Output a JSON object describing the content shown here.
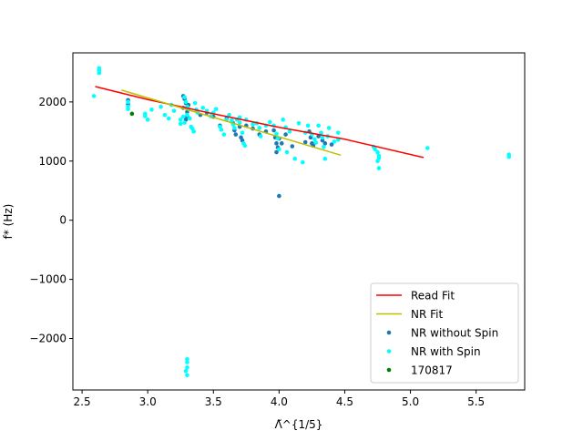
{
  "chart_data": {
    "type": "scatter",
    "xlabel": "Λ̃^{1/5}",
    "ylabel": "f* (Hz)",
    "xlim": [
      2.43,
      5.87
    ],
    "ylim": [
      -2870,
      2830
    ],
    "xticks": [
      2.5,
      3.0,
      3.5,
      4.0,
      4.5,
      5.0,
      5.5
    ],
    "xtick_labels": [
      "2.5",
      "3.0",
      "3.5",
      "4.0",
      "4.5",
      "5.0",
      "5.5"
    ],
    "yticks": [
      -2000,
      -1000,
      0,
      1000,
      2000
    ],
    "ytick_labels": [
      "−2000",
      "−1000",
      "0",
      "1000",
      "2000"
    ],
    "legend_position": "lower right",
    "series": [
      {
        "name": "Read Fit",
        "kind": "line",
        "color": "#ff0000",
        "points": [
          [
            2.6,
            2260
          ],
          [
            3.0,
            2040
          ],
          [
            3.5,
            1800
          ],
          [
            4.0,
            1570
          ],
          [
            4.5,
            1370
          ],
          [
            5.1,
            1060
          ]
        ]
      },
      {
        "name": "NR Fit",
        "kind": "line",
        "color": "#bfbf00",
        "points": [
          [
            2.8,
            2200
          ],
          [
            4.47,
            1100
          ]
        ]
      },
      {
        "name": "NR without Spin",
        "kind": "scatter",
        "color": "#1f77b4",
        "points": [
          [
            2.85,
            2030
          ],
          [
            2.85,
            1960
          ],
          [
            3.27,
            2100
          ],
          [
            3.28,
            2050
          ],
          [
            3.29,
            1980
          ],
          [
            3.27,
            1900
          ],
          [
            3.3,
            1830
          ],
          [
            3.3,
            1760
          ],
          [
            3.29,
            1700
          ],
          [
            3.31,
            1950
          ],
          [
            3.4,
            1780
          ],
          [
            3.45,
            1820
          ],
          [
            3.5,
            1750
          ],
          [
            3.55,
            1600
          ],
          [
            3.6,
            1720
          ],
          [
            3.65,
            1640
          ],
          [
            3.66,
            1520
          ],
          [
            3.67,
            1450
          ],
          [
            3.7,
            1580
          ],
          [
            3.71,
            1400
          ],
          [
            3.72,
            1350
          ],
          [
            3.75,
            1600
          ],
          [
            3.8,
            1550
          ],
          [
            3.85,
            1450
          ],
          [
            3.9,
            1500
          ],
          [
            3.96,
            1520
          ],
          [
            3.97,
            1400
          ],
          [
            3.98,
            1300
          ],
          [
            3.99,
            1230
          ],
          [
            3.98,
            1150
          ],
          [
            4.0,
            1380
          ],
          [
            4.02,
            1300
          ],
          [
            4.05,
            1450
          ],
          [
            4.1,
            1250
          ],
          [
            4.2,
            1320
          ],
          [
            4.23,
            1500
          ],
          [
            4.24,
            1400
          ],
          [
            4.25,
            1300
          ],
          [
            4.26,
            1260
          ],
          [
            4.3,
            1420
          ],
          [
            4.33,
            1350
          ],
          [
            4.35,
            1300
          ],
          [
            4.4,
            1280
          ],
          [
            4.0,
            410
          ]
        ]
      },
      {
        "name": "NR with Spin",
        "kind": "scatter",
        "color": "#00ffff",
        "points": [
          [
            2.59,
            2100
          ],
          [
            2.63,
            2570
          ],
          [
            2.63,
            2530
          ],
          [
            2.63,
            2490
          ],
          [
            2.85,
            2000
          ],
          [
            2.85,
            1920
          ],
          [
            2.85,
            1880
          ],
          [
            2.98,
            1800
          ],
          [
            2.98,
            1760
          ],
          [
            3.0,
            1700
          ],
          [
            3.03,
            1870
          ],
          [
            3.1,
            1920
          ],
          [
            3.13,
            1780
          ],
          [
            3.16,
            1720
          ],
          [
            3.18,
            1950
          ],
          [
            3.2,
            1850
          ],
          [
            3.25,
            1630
          ],
          [
            3.25,
            1700
          ],
          [
            3.27,
            1750
          ],
          [
            3.28,
            2080
          ],
          [
            3.29,
            2000
          ],
          [
            3.3,
            1920
          ],
          [
            3.31,
            1880
          ],
          [
            3.3,
            1780
          ],
          [
            3.32,
            1720
          ],
          [
            3.28,
            1650
          ],
          [
            3.33,
            1580
          ],
          [
            3.34,
            1550
          ],
          [
            3.35,
            1500
          ],
          [
            3.36,
            1980
          ],
          [
            3.37,
            1870
          ],
          [
            3.38,
            1820
          ],
          [
            3.42,
            1900
          ],
          [
            3.45,
            1850
          ],
          [
            3.48,
            1760
          ],
          [
            3.5,
            1820
          ],
          [
            3.52,
            1880
          ],
          [
            3.55,
            1580
          ],
          [
            3.56,
            1530
          ],
          [
            3.58,
            1450
          ],
          [
            3.6,
            1700
          ],
          [
            3.62,
            1780
          ],
          [
            3.64,
            1690
          ],
          [
            3.65,
            1620
          ],
          [
            3.66,
            1560
          ],
          [
            3.68,
            1700
          ],
          [
            3.7,
            1740
          ],
          [
            3.7,
            1650
          ],
          [
            3.72,
            1480
          ],
          [
            3.73,
            1300
          ],
          [
            3.74,
            1260
          ],
          [
            3.75,
            1700
          ],
          [
            3.8,
            1620
          ],
          [
            3.83,
            1640
          ],
          [
            3.85,
            1560
          ],
          [
            3.86,
            1420
          ],
          [
            3.9,
            1600
          ],
          [
            3.93,
            1660
          ],
          [
            3.96,
            1600
          ],
          [
            3.98,
            1460
          ],
          [
            3.99,
            1380
          ],
          [
            4.0,
            1200
          ],
          [
            4.03,
            1700
          ],
          [
            4.05,
            1570
          ],
          [
            4.06,
            1150
          ],
          [
            4.08,
            1500
          ],
          [
            4.12,
            1040
          ],
          [
            4.15,
            1640
          ],
          [
            4.18,
            980
          ],
          [
            4.2,
            1480
          ],
          [
            4.22,
            1600
          ],
          [
            4.25,
            1450
          ],
          [
            4.27,
            1370
          ],
          [
            4.28,
            1310
          ],
          [
            4.3,
            1600
          ],
          [
            4.32,
            1480
          ],
          [
            4.33,
            1400
          ],
          [
            4.34,
            1240
          ],
          [
            4.35,
            1040
          ],
          [
            4.37,
            1420
          ],
          [
            4.38,
            1560
          ],
          [
            4.42,
            1330
          ],
          [
            4.45,
            1480
          ],
          [
            4.45,
            1360
          ],
          [
            4.72,
            1240
          ],
          [
            4.73,
            1200
          ],
          [
            4.75,
            1150
          ],
          [
            4.76,
            1090
          ],
          [
            4.76,
            1050
          ],
          [
            4.75,
            1000
          ],
          [
            4.76,
            880
          ],
          [
            5.13,
            1220
          ],
          [
            5.75,
            1110
          ],
          [
            5.75,
            1070
          ],
          [
            3.3,
            -2350
          ],
          [
            3.3,
            -2400
          ],
          [
            3.3,
            -2490
          ],
          [
            3.29,
            -2550
          ],
          [
            3.3,
            -2620
          ]
        ]
      },
      {
        "name": "170817",
        "kind": "scatter",
        "color": "#008000",
        "points": [
          [
            2.88,
            1800
          ]
        ]
      }
    ]
  }
}
